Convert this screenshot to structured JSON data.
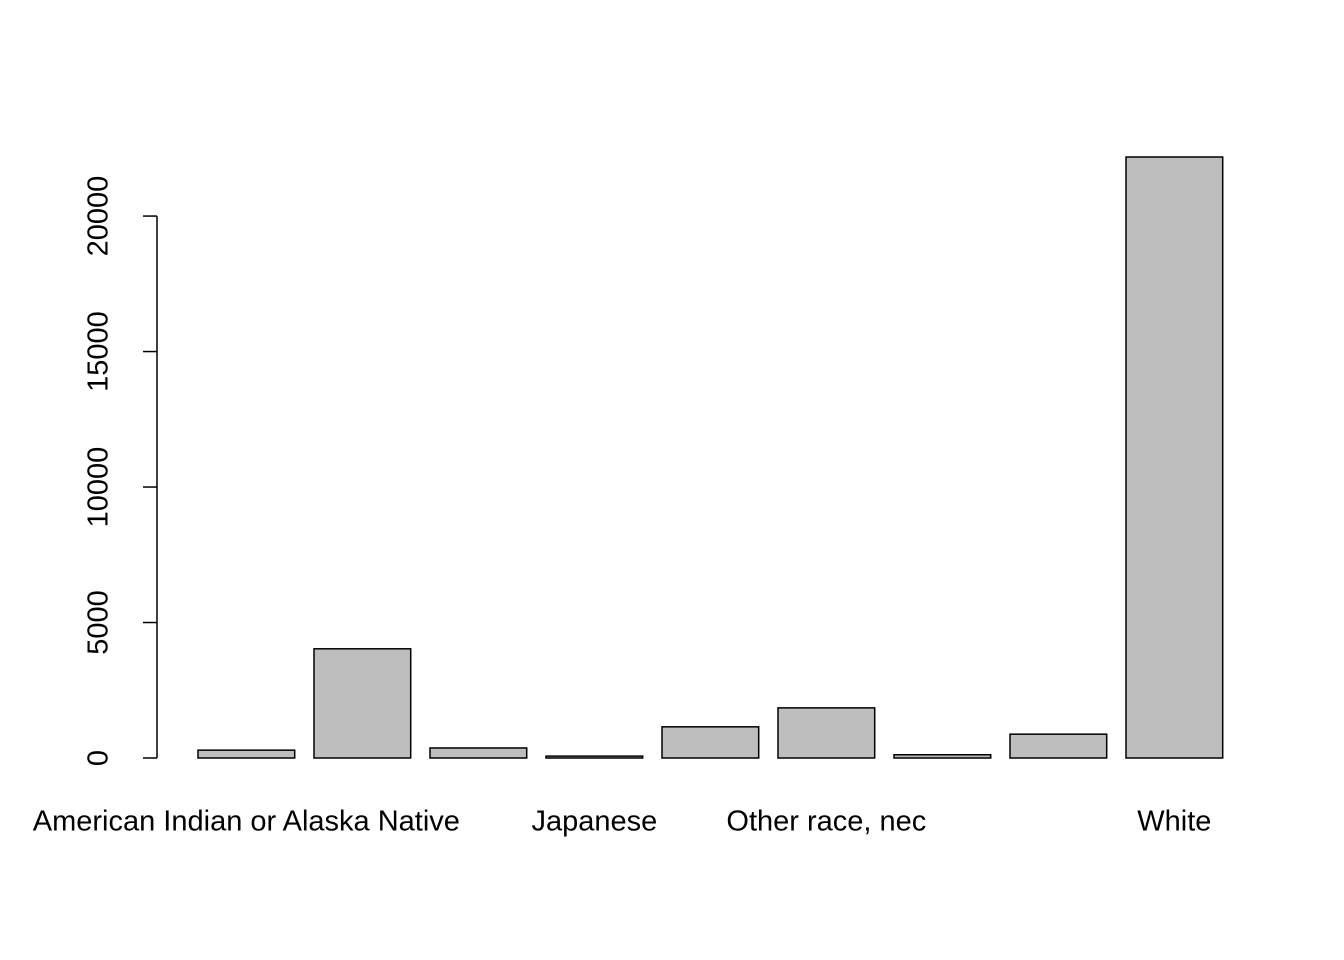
{
  "chart_data": {
    "type": "bar",
    "categories": [
      "American Indian or Alaska Native",
      null,
      null,
      "Japanese",
      null,
      "Other race, nec",
      null,
      null,
      "White"
    ],
    "values": [
      290,
      4030,
      370,
      70,
      1150,
      1850,
      120,
      880,
      22180
    ],
    "color": "#bebebe",
    "ylim": [
      0,
      22180
    ],
    "yticks": [
      0,
      5000,
      10000,
      15000,
      20000
    ],
    "grid": false
  }
}
